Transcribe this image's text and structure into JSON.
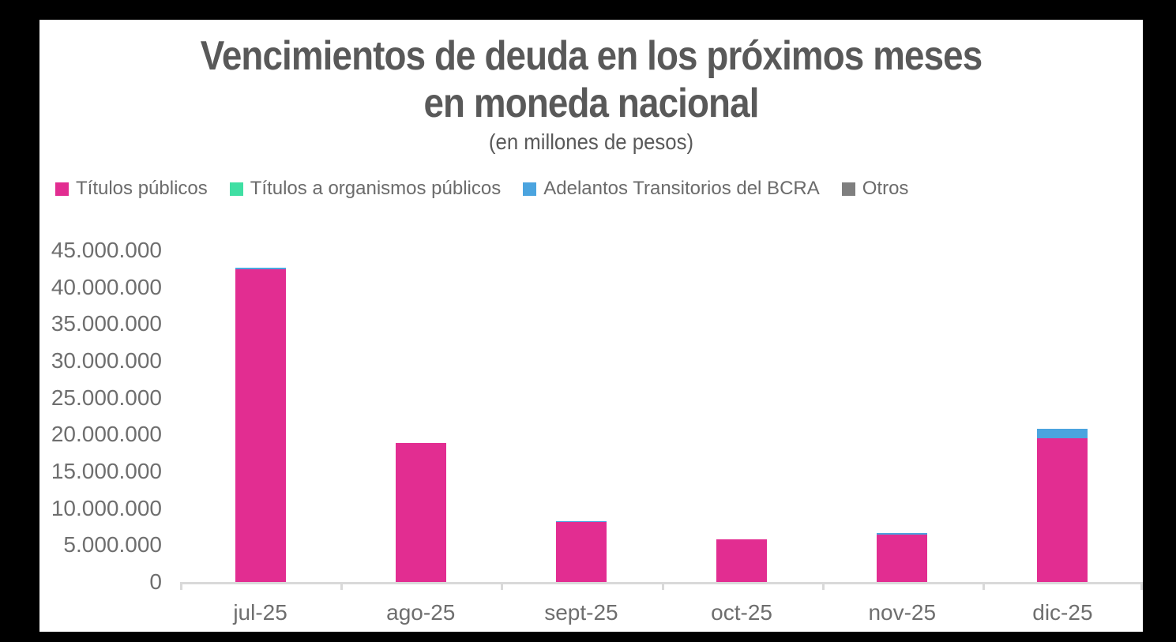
{
  "title": {
    "line1": "Vencimientos de deuda en los próximos meses",
    "line2": "en moneda nacional"
  },
  "subtitle": "(en millones de pesos)",
  "chart_data": {
    "type": "bar",
    "stacked": true,
    "title": "Vencimientos de deuda en los próximos meses en moneda nacional",
    "subtitle": "(en millones de pesos)",
    "categories": [
      "jul-25",
      "ago-25",
      "sept-25",
      "oct-25",
      "nov-25",
      "dic-25"
    ],
    "series": [
      {
        "name": "Títulos públicos",
        "color": "#E22D91",
        "values": [
          42400000,
          18900000,
          8100000,
          5750000,
          6400000,
          19450000
        ]
      },
      {
        "name": "Títulos a organismos públicos",
        "color": "#3FDFA3",
        "values": [
          0,
          0,
          0,
          0,
          0,
          0
        ]
      },
      {
        "name": "Adelantos Transitorios del BCRA",
        "color": "#4BA4DF",
        "values": [
          200000,
          0,
          200000,
          0,
          200000,
          1300000
        ]
      },
      {
        "name": "Otros",
        "color": "#7F7F7F",
        "values": [
          0,
          0,
          0,
          0,
          0,
          0
        ]
      }
    ],
    "totals": [
      42600000,
      18900000,
      8300000,
      5750000,
      6600000,
      20750000
    ],
    "xlabel": "",
    "ylabel": "",
    "ylim": [
      0,
      45000000
    ],
    "ytick_step": 5000000,
    "ytick_labels": [
      "0",
      "5.000.000",
      "10.000.000",
      "15.000.000",
      "20.000.000",
      "25.000.000",
      "30.000.000",
      "35.000.000",
      "40.000.000",
      "45.000.000"
    ],
    "grid": false,
    "legend_position": "top-left"
  },
  "colors": {
    "frame_background": "#000000",
    "panel_background": "#FFFFFF",
    "title_text": "#595959",
    "axis_text": "#6E6E6E",
    "axis_line": "#D9D9D9"
  }
}
